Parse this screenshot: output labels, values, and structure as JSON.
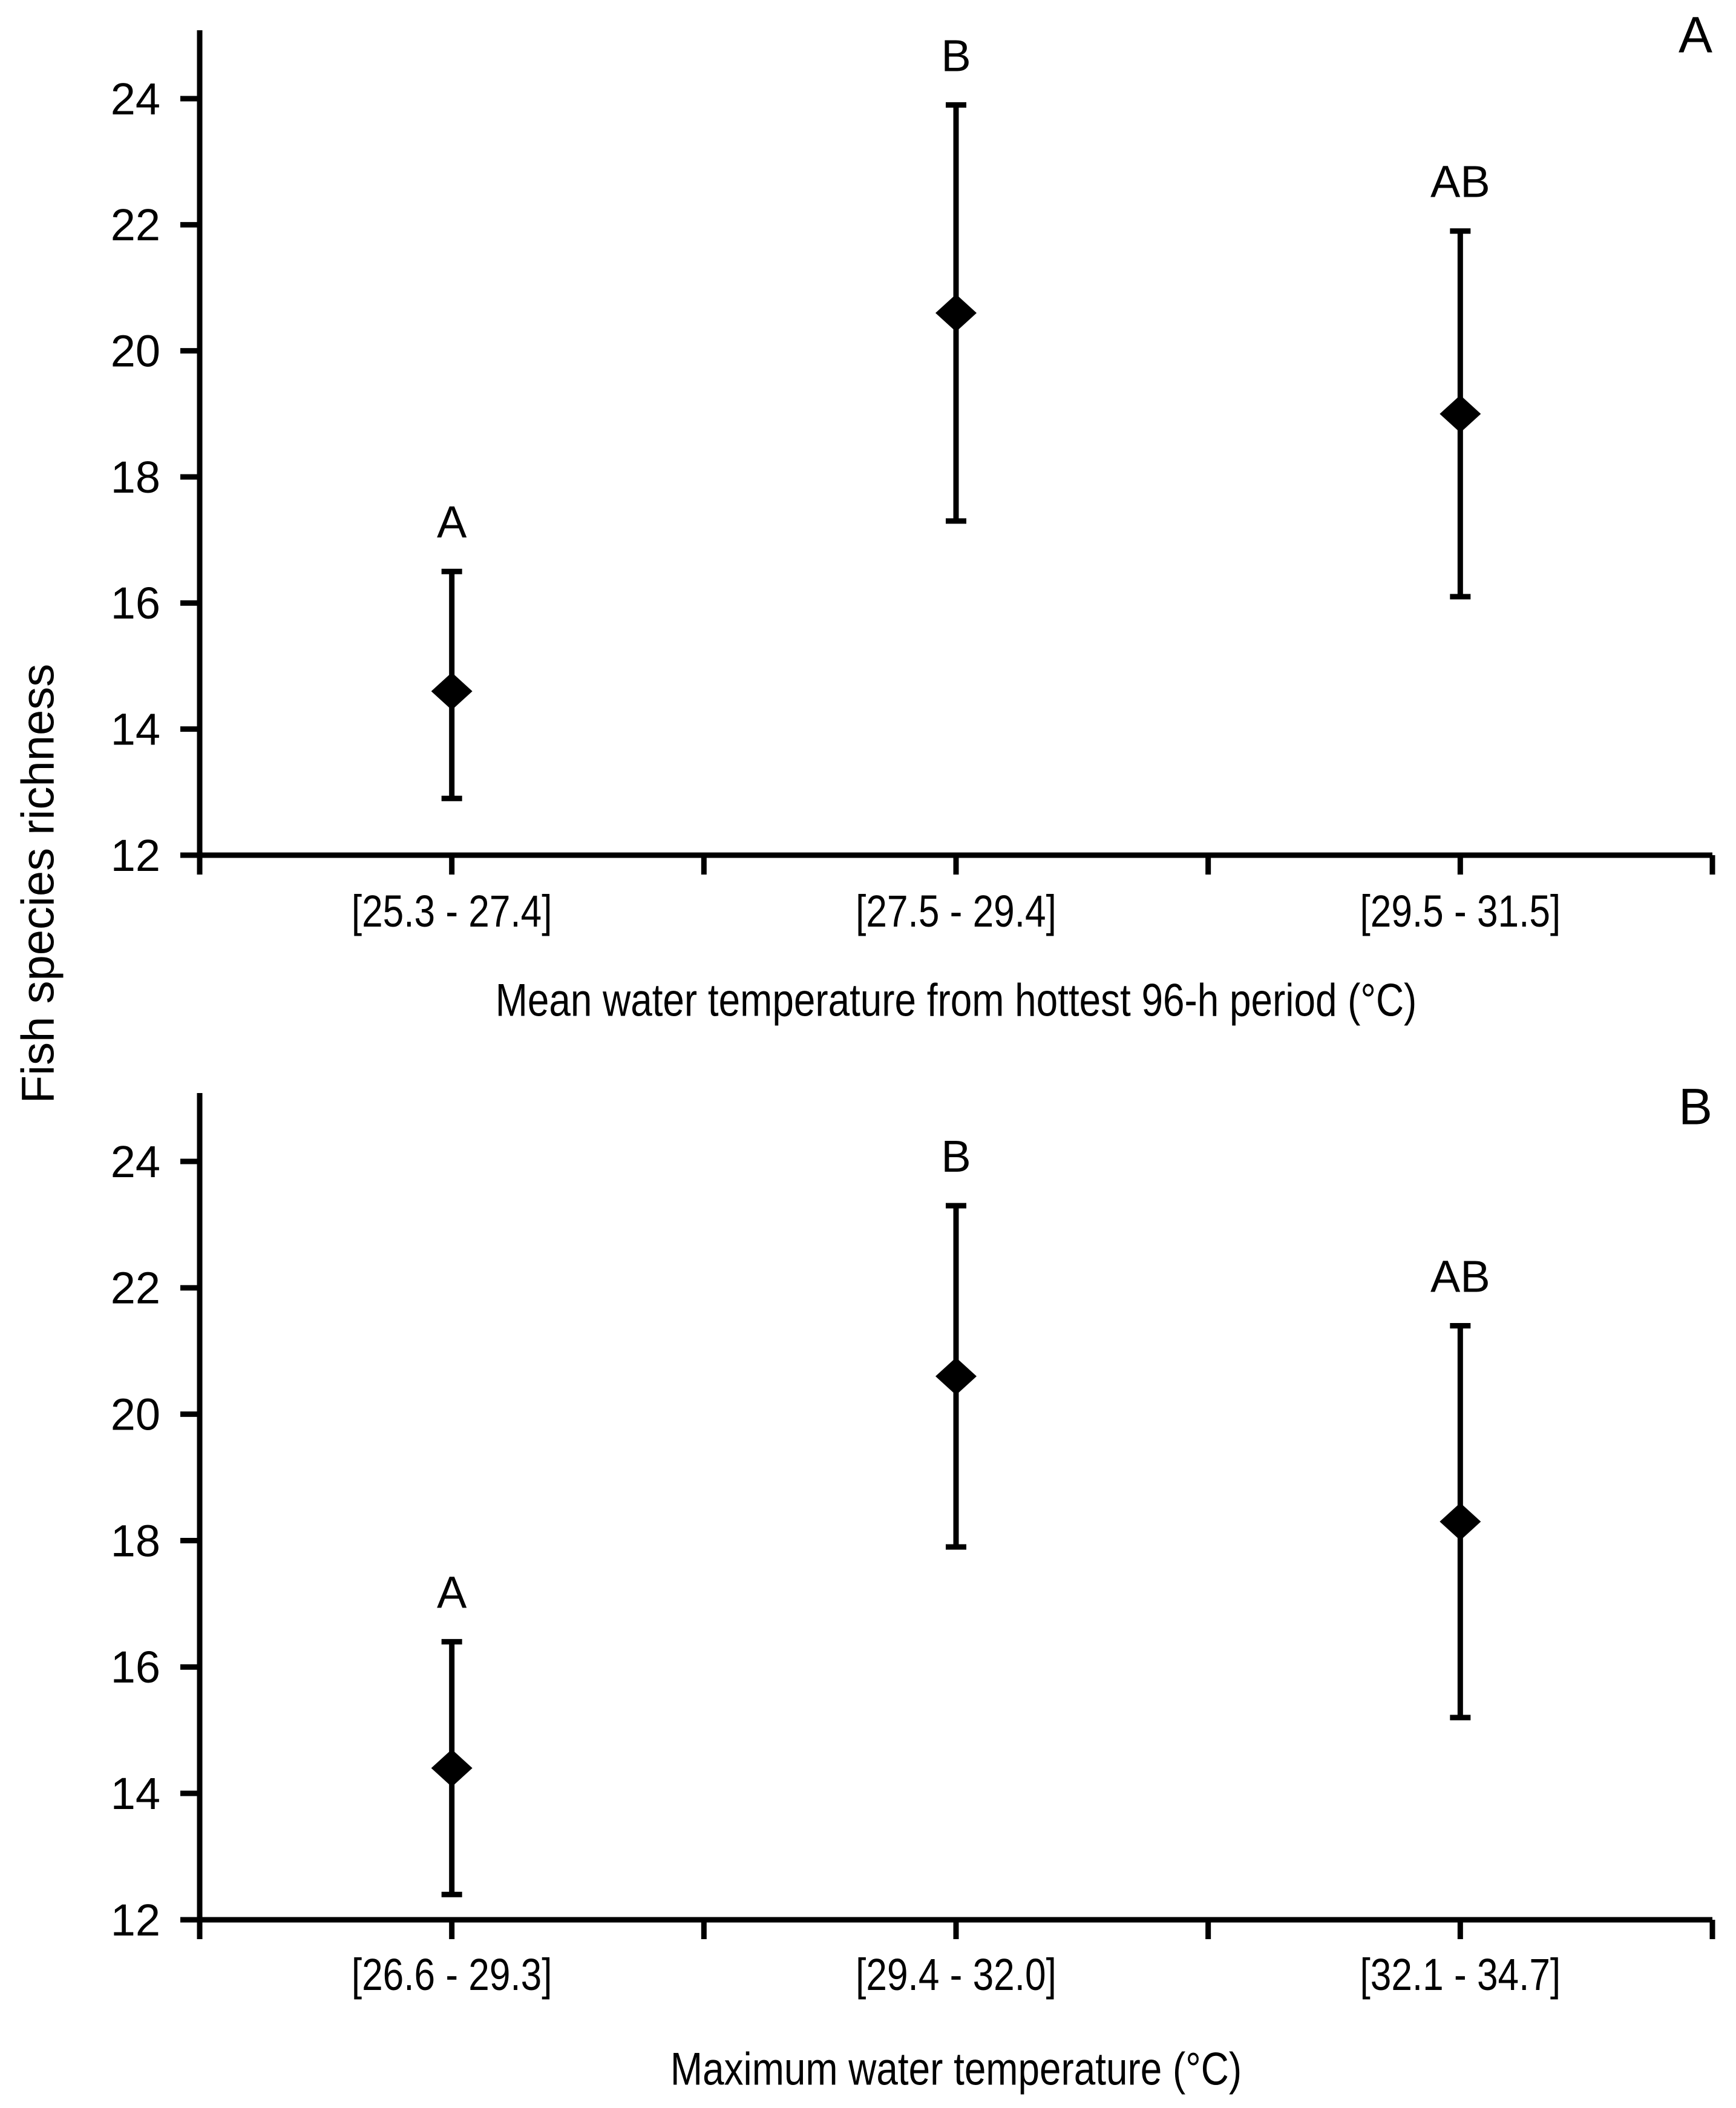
{
  "figure": {
    "shared_ylabel": "Fish species richness",
    "background": "#ffffff",
    "line_color": "#000000",
    "marker_color": "#000000"
  },
  "chart_data": [
    {
      "type": "scatter",
      "panel_label": "A",
      "xlabel": "Mean water temperature from hottest 96-h period (°C)",
      "ylabel": "Fish species richness",
      "categories": [
        "[25.3 - 27.4]",
        "[27.5 - 29.4]",
        "[29.5 - 31.5]"
      ],
      "yticks": [
        12,
        14,
        16,
        18,
        20,
        22,
        24
      ],
      "ylim": [
        12,
        25.2
      ],
      "grid": false,
      "legend": "none",
      "marker": "diamond",
      "series": [
        {
          "name": "Mean fish species richness with error bars",
          "points": [
            {
              "category": "[25.3 - 27.4]",
              "mean": 14.6,
              "lower": 12.9,
              "upper": 16.5,
              "sig_letter": "A"
            },
            {
              "category": "[27.5 - 29.4]",
              "mean": 20.6,
              "lower": 17.3,
              "upper": 23.9,
              "sig_letter": "B"
            },
            {
              "category": "[29.5 - 31.5]",
              "mean": 19.0,
              "lower": 16.1,
              "upper": 21.9,
              "sig_letter": "AB"
            }
          ]
        }
      ]
    },
    {
      "type": "scatter",
      "panel_label": "B",
      "xlabel": "Maximum water temperature (°C)",
      "ylabel": "Fish species richness",
      "categories": [
        "[26.6 - 29.3]",
        "[29.4 - 32.0]",
        "[32.1 - 34.7]"
      ],
      "yticks": [
        12,
        14,
        16,
        18,
        20,
        22,
        24
      ],
      "ylim": [
        12,
        25.2
      ],
      "grid": false,
      "legend": "none",
      "marker": "diamond",
      "series": [
        {
          "name": "Mean fish species richness with error bars",
          "points": [
            {
              "category": "[26.6 - 29.3]",
              "mean": 14.4,
              "lower": 12.4,
              "upper": 16.4,
              "sig_letter": "A"
            },
            {
              "category": "[29.4 - 32.0]",
              "mean": 20.6,
              "lower": 17.9,
              "upper": 23.3,
              "sig_letter": "B"
            },
            {
              "category": "[32.1 - 34.7]",
              "mean": 18.3,
              "lower": 15.2,
              "upper": 21.4,
              "sig_letter": "AB"
            }
          ]
        }
      ]
    }
  ]
}
